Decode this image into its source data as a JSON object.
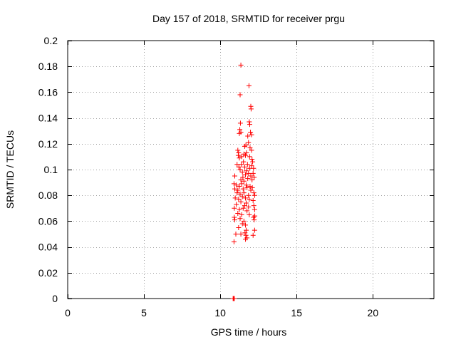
{
  "chart_data": {
    "type": "scatter",
    "title": "Day 157 of 2018, SRMTID for receiver prgu",
    "xlabel": "GPS time / hours",
    "ylabel": "SRMTID / TECUs",
    "xlim": [
      0,
      24
    ],
    "ylim": [
      0,
      0.2
    ],
    "xticks": [
      0,
      5,
      10,
      15,
      20
    ],
    "xtick_labels": [
      "0",
      "5",
      "10",
      "15",
      "20"
    ],
    "yticks": [
      0,
      0.02,
      0.04,
      0.06,
      0.08,
      0.1,
      0.12,
      0.14,
      0.16,
      0.18,
      0.2
    ],
    "ytick_labels": [
      "0",
      "0.02",
      "0.04",
      "0.06",
      "0.08",
      "0.1",
      "0.12",
      "0.14",
      "0.16",
      "0.18",
      "0.2"
    ],
    "grid": true,
    "marker": "+",
    "series": [
      {
        "name": "SRMTID",
        "color": "#ff0000",
        "points": [
          [
            10.84,
            0.0
          ],
          [
            10.86,
            0.0
          ],
          [
            10.88,
            0.0
          ],
          [
            10.9,
            0.0
          ],
          [
            10.92,
            0.0
          ],
          [
            11.35,
            0.181
          ],
          [
            11.3,
            0.158
          ],
          [
            11.88,
            0.165
          ],
          [
            12.0,
            0.149
          ],
          [
            12.02,
            0.147
          ],
          [
            11.9,
            0.137
          ],
          [
            11.93,
            0.135
          ],
          [
            11.32,
            0.136
          ],
          [
            11.28,
            0.131
          ],
          [
            11.35,
            0.129
          ],
          [
            11.25,
            0.128
          ],
          [
            11.98,
            0.129
          ],
          [
            12.05,
            0.127
          ],
          [
            11.8,
            0.126
          ],
          [
            11.68,
            0.119
          ],
          [
            11.6,
            0.118
          ],
          [
            11.95,
            0.117
          ],
          [
            11.85,
            0.121
          ],
          [
            11.72,
            0.113
          ],
          [
            12.05,
            0.115
          ],
          [
            11.15,
            0.115
          ],
          [
            11.2,
            0.113
          ],
          [
            11.18,
            0.111
          ],
          [
            11.25,
            0.109
          ],
          [
            11.4,
            0.11
          ],
          [
            11.55,
            0.112
          ],
          [
            11.65,
            0.111
          ],
          [
            11.92,
            0.11
          ],
          [
            12.08,
            0.108
          ],
          [
            12.12,
            0.106
          ],
          [
            11.1,
            0.104
          ],
          [
            11.22,
            0.102
          ],
          [
            11.38,
            0.104
          ],
          [
            11.52,
            0.106
          ],
          [
            11.6,
            0.102
          ],
          [
            11.78,
            0.104
          ],
          [
            11.92,
            0.101
          ],
          [
            12.05,
            0.103
          ],
          [
            12.18,
            0.101
          ],
          [
            11.3,
            0.1
          ],
          [
            11.45,
            0.098
          ],
          [
            11.7,
            0.099
          ],
          [
            11.85,
            0.097
          ],
          [
            12.0,
            0.095
          ],
          [
            12.15,
            0.097
          ],
          [
            10.95,
            0.095
          ],
          [
            11.48,
            0.094
          ],
          [
            11.65,
            0.096
          ],
          [
            11.8,
            0.093
          ],
          [
            12.08,
            0.092
          ],
          [
            12.22,
            0.094
          ],
          [
            11.35,
            0.092
          ],
          [
            11.55,
            0.091
          ],
          [
            10.9,
            0.089
          ],
          [
            11.05,
            0.088
          ],
          [
            11.25,
            0.087
          ],
          [
            11.4,
            0.089
          ],
          [
            11.7,
            0.088
          ],
          [
            11.95,
            0.087
          ],
          [
            12.1,
            0.086
          ],
          [
            10.95,
            0.085
          ],
          [
            11.15,
            0.084
          ],
          [
            11.5,
            0.085
          ],
          [
            11.75,
            0.086
          ],
          [
            12.0,
            0.084
          ],
          [
            12.2,
            0.082
          ],
          [
            12.25,
            0.08
          ],
          [
            11.1,
            0.082
          ],
          [
            11.3,
            0.081
          ],
          [
            11.55,
            0.082
          ],
          [
            11.85,
            0.08
          ],
          [
            10.98,
            0.078
          ],
          [
            11.2,
            0.077
          ],
          [
            11.45,
            0.079
          ],
          [
            11.65,
            0.078
          ],
          [
            11.9,
            0.077
          ],
          [
            12.15,
            0.076
          ],
          [
            11.35,
            0.075
          ],
          [
            11.7,
            0.074
          ],
          [
            11.05,
            0.073
          ],
          [
            11.6,
            0.072
          ],
          [
            11.85,
            0.071
          ],
          [
            12.2,
            0.072
          ],
          [
            10.92,
            0.07
          ],
          [
            11.25,
            0.069
          ],
          [
            11.5,
            0.07
          ],
          [
            11.75,
            0.068
          ],
          [
            12.25,
            0.069
          ],
          [
            11.15,
            0.066
          ],
          [
            11.4,
            0.065
          ],
          [
            11.9,
            0.065
          ],
          [
            12.18,
            0.063
          ],
          [
            10.92,
            0.063
          ],
          [
            10.95,
            0.061
          ],
          [
            11.3,
            0.062
          ],
          [
            11.55,
            0.06
          ],
          [
            12.22,
            0.061
          ],
          [
            12.26,
            0.064
          ],
          [
            11.45,
            0.058
          ],
          [
            11.65,
            0.057
          ],
          [
            11.2,
            0.055
          ],
          [
            11.7,
            0.053
          ],
          [
            12.25,
            0.053
          ],
          [
            11.02,
            0.05
          ],
          [
            11.35,
            0.05
          ],
          [
            11.62,
            0.051
          ],
          [
            11.68,
            0.049
          ],
          [
            11.75,
            0.047
          ],
          [
            11.65,
            0.046
          ],
          [
            10.9,
            0.044
          ],
          [
            12.15,
            0.049
          ]
        ]
      }
    ]
  }
}
